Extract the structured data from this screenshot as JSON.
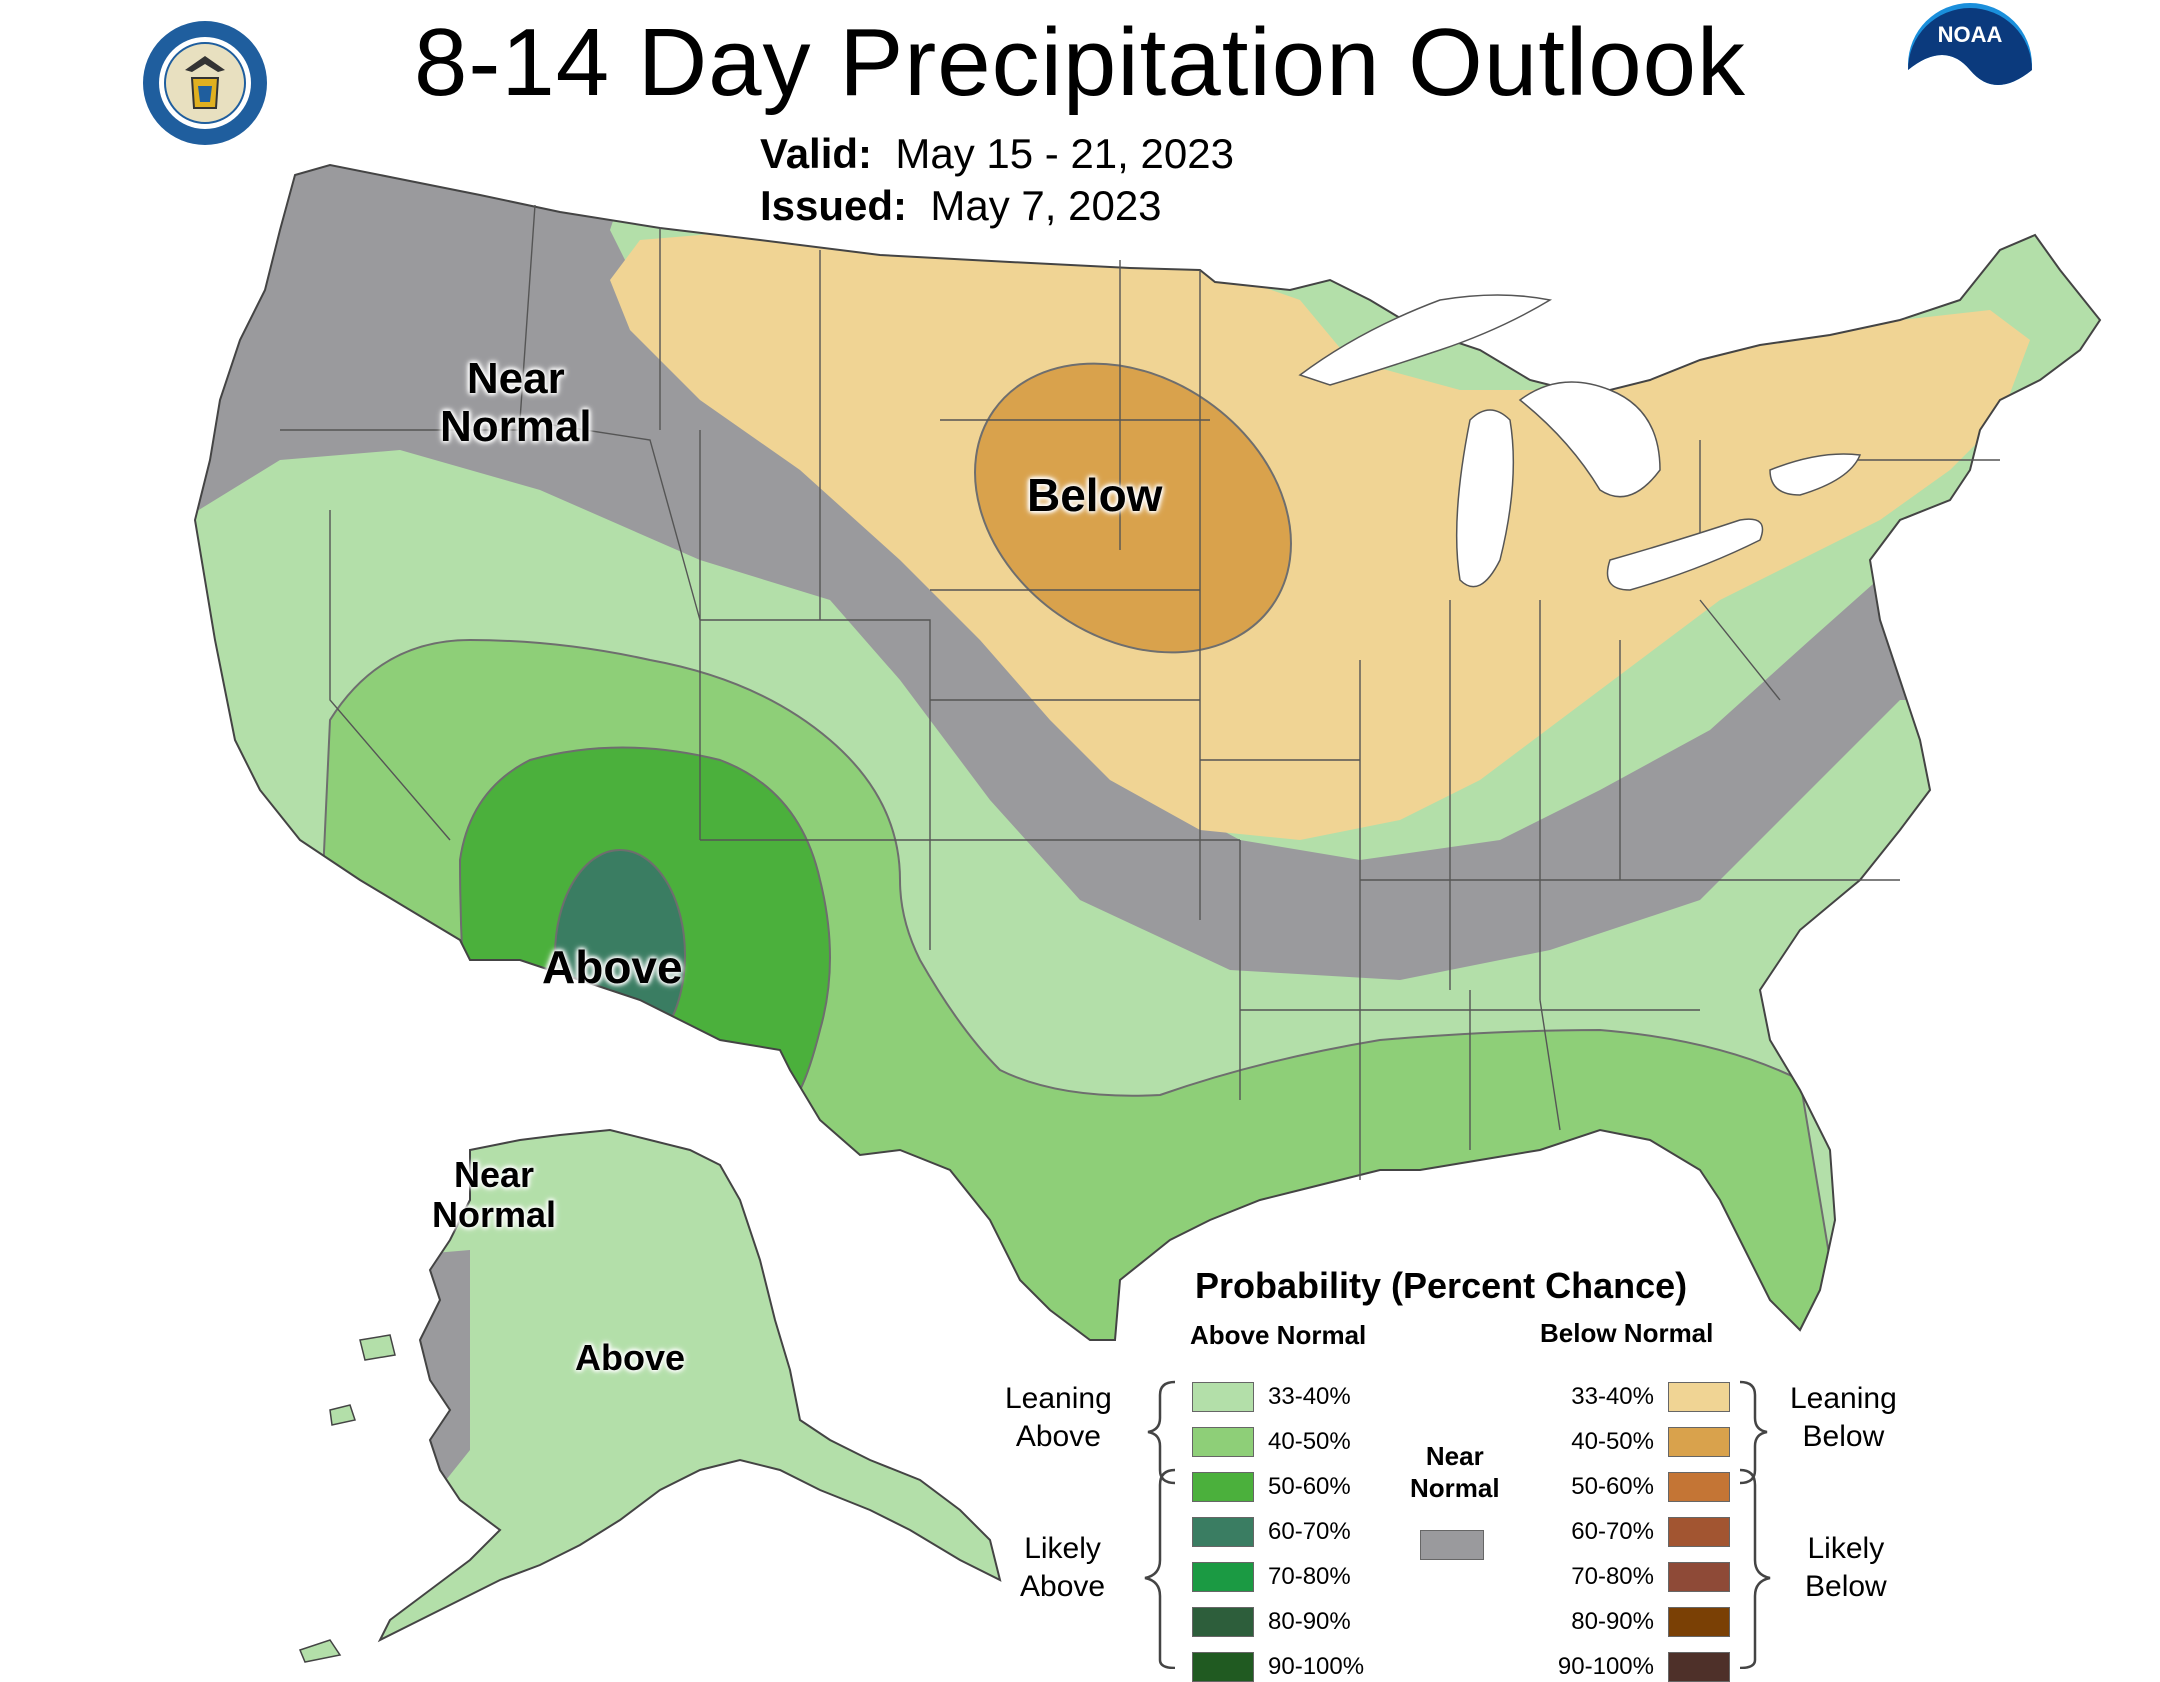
{
  "header": {
    "title": "8-14 Day Precipitation Outlook",
    "valid_key": "Valid:",
    "valid_value": "May 15 - 21, 2023",
    "issued_key": "Issued:",
    "issued_value": "May 7, 2023",
    "left_logo": "department-of-commerce-seal",
    "right_logo": "noaa-logo",
    "noaa_text": "NOAA"
  },
  "map": {
    "labels": {
      "near_normal_conus": [
        "Near",
        "Normal"
      ],
      "below": "Below",
      "above": "Above",
      "near_normal_alaska": [
        "Near",
        "Normal"
      ],
      "above_alaska": "Above"
    }
  },
  "legend": {
    "title": "Probability (Percent Chance)",
    "above_header": "Above Normal",
    "below_header": "Below Normal",
    "above_colors": [
      "#b3dfa9",
      "#8ecf78",
      "#4bb03c",
      "#3a7d62",
      "#1b9a43",
      "#2d5e3b",
      "#205a21"
    ],
    "below_colors": [
      "#f0d494",
      "#d9a24c",
      "#c47535",
      "#a25531",
      "#8e4a37",
      "#7a4005",
      "#4e3029"
    ],
    "ranges": [
      "33-40%",
      "40-50%",
      "50-60%",
      "60-70%",
      "70-80%",
      "80-90%",
      "90-100%"
    ],
    "leaning_above": [
      "Leaning",
      "Above"
    ],
    "likely_above": [
      "Likely",
      "Above"
    ],
    "leaning_below": [
      "Leaning",
      "Below"
    ],
    "likely_below": [
      "Likely",
      "Below"
    ],
    "near_normal": [
      "Near",
      "Normal"
    ],
    "near_normal_color": "#9a9a9d"
  }
}
